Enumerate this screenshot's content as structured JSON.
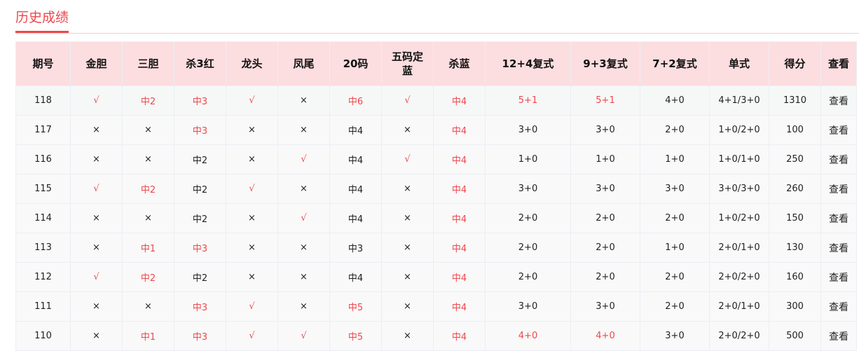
{
  "tab": "历史成绩",
  "columns": [
    "期号",
    "金胆",
    "三胆",
    "杀3红",
    "龙头",
    "凤尾",
    "20码",
    "五码定蓝",
    "杀蓝",
    "12+4复式",
    "9+3复式",
    "7+2复式",
    "单式",
    "得分",
    "查看"
  ],
  "view_label": "查看",
  "colors": {
    "accent": "#f0474c",
    "header_bg": "#fcdde0"
  },
  "rows": [
    {
      "cells": [
        "118",
        "√",
        "中2",
        "中3",
        "√",
        "×",
        "中6",
        "√",
        "中4",
        "5+1",
        "5+1",
        "4+0",
        "4+1/3+0",
        "1310"
      ],
      "hits": [
        1,
        2,
        3,
        4,
        6,
        7,
        8,
        9,
        10
      ]
    },
    {
      "cells": [
        "117",
        "×",
        "×",
        "中3",
        "×",
        "×",
        "中4",
        "×",
        "中4",
        "3+0",
        "3+0",
        "2+0",
        "1+0/2+0",
        "100"
      ],
      "hits": [
        3,
        8
      ]
    },
    {
      "cells": [
        "116",
        "×",
        "×",
        "中2",
        "×",
        "√",
        "中4",
        "√",
        "中4",
        "1+0",
        "1+0",
        "1+0",
        "1+0/1+0",
        "250"
      ],
      "hits": [
        5,
        7,
        8
      ]
    },
    {
      "cells": [
        "115",
        "√",
        "中2",
        "中2",
        "√",
        "×",
        "中4",
        "×",
        "中4",
        "3+0",
        "3+0",
        "3+0",
        "3+0/3+0",
        "260"
      ],
      "hits": [
        1,
        2,
        4,
        8
      ]
    },
    {
      "cells": [
        "114",
        "×",
        "×",
        "中2",
        "×",
        "√",
        "中4",
        "×",
        "中4",
        "2+0",
        "2+0",
        "2+0",
        "1+0/2+0",
        "150"
      ],
      "hits": [
        5,
        8
      ]
    },
    {
      "cells": [
        "113",
        "×",
        "中1",
        "中3",
        "×",
        "×",
        "中3",
        "×",
        "中4",
        "2+0",
        "2+0",
        "1+0",
        "2+0/1+0",
        "130"
      ],
      "hits": [
        2,
        3,
        8
      ]
    },
    {
      "cells": [
        "112",
        "√",
        "中2",
        "中2",
        "×",
        "×",
        "中4",
        "×",
        "中4",
        "2+0",
        "2+0",
        "2+0",
        "2+0/2+0",
        "160"
      ],
      "hits": [
        1,
        2,
        8
      ]
    },
    {
      "cells": [
        "111",
        "×",
        "×",
        "中3",
        "√",
        "×",
        "中5",
        "×",
        "中4",
        "3+0",
        "3+0",
        "2+0",
        "2+0/1+0",
        "300"
      ],
      "hits": [
        3,
        4,
        6,
        8
      ]
    },
    {
      "cells": [
        "110",
        "×",
        "中1",
        "中3",
        "√",
        "√",
        "中5",
        "×",
        "中4",
        "4+0",
        "4+0",
        "3+0",
        "2+0/2+0",
        "500"
      ],
      "hits": [
        2,
        3,
        4,
        5,
        6,
        8,
        9,
        10
      ]
    }
  ]
}
